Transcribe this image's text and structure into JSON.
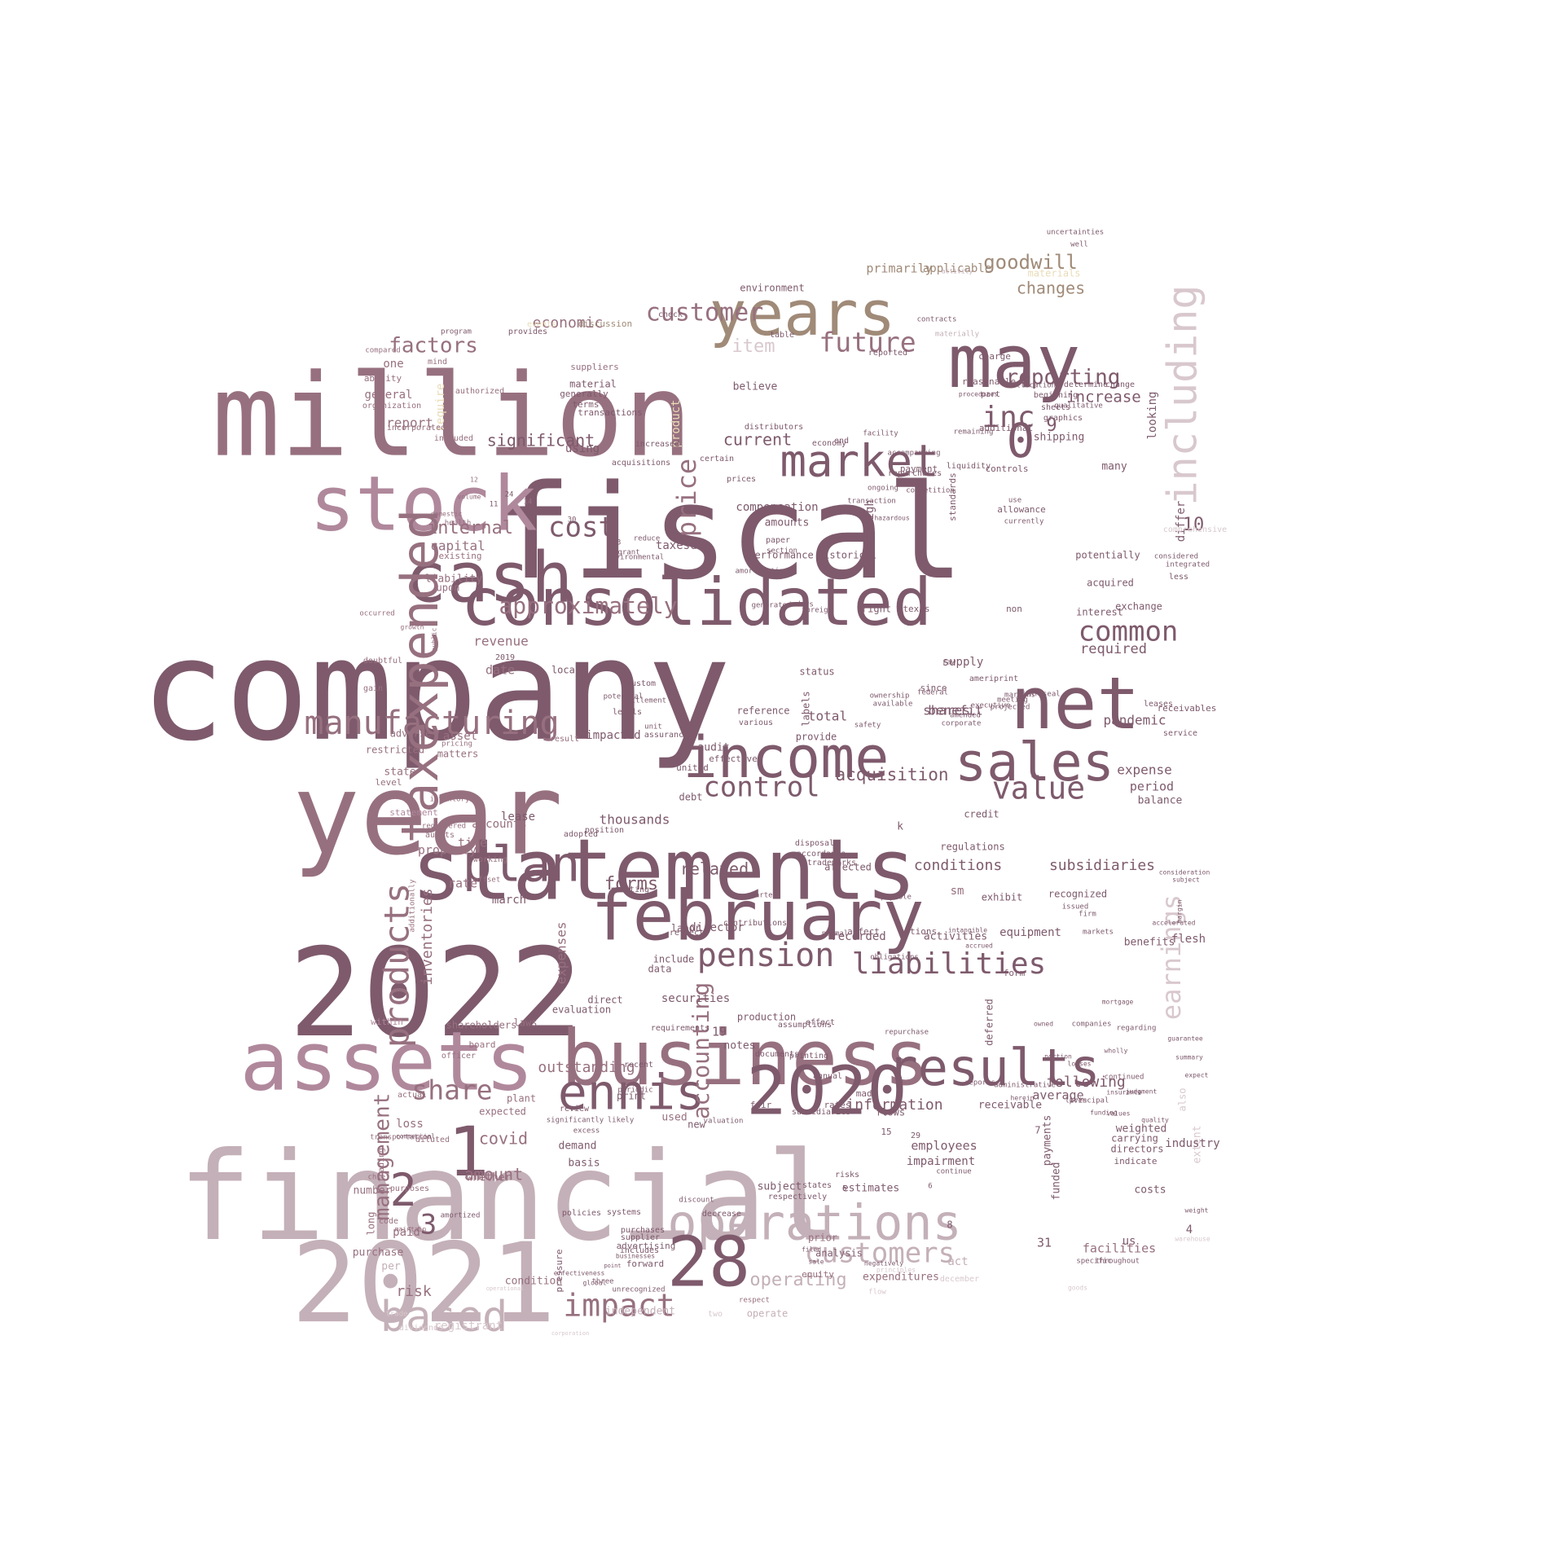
{
  "palette": {
    "dark": "#7e5a6c",
    "mid": "#97707f",
    "rose": "#b0889c",
    "light": "#c4b0b8",
    "pale": "#d8c8cd",
    "cream": "#e8dcb8",
    "tan": "#a08a78"
  },
  "words": [
    "company",
    "fiscal",
    "million",
    "financial",
    "year",
    "2022",
    "2021",
    "statements",
    "consolidated",
    "business",
    "february",
    "assets",
    "stock",
    "cash",
    "may",
    "years",
    "net",
    "income",
    "sales",
    "taxexpended",
    "market",
    "2020",
    "results",
    "operations",
    "plan",
    "ennis",
    "28",
    "products",
    "based",
    "including",
    "impact",
    "customers",
    "manufacturing",
    "pension",
    "liabilities",
    "management",
    "earnings",
    "value",
    "control",
    "cost",
    "price",
    "inc",
    "customer",
    "future",
    "approximately",
    "common",
    "share",
    "accounting",
    "goodwill",
    "reporting",
    "1",
    "2",
    "3",
    "0",
    "9",
    "10",
    "factors",
    "internal",
    "capital",
    "significant",
    "current",
    "increase",
    "changes",
    "item",
    "economic",
    "acquisition",
    "forms",
    "covid",
    "amount",
    "related",
    "information",
    "following",
    "average",
    "employees",
    "impairment",
    "outstanding",
    "operating",
    "risk",
    "conditions",
    "subsidiaries",
    "thousands",
    "shares",
    "benefit",
    "total",
    "pandemic",
    "expense",
    "period",
    "balance",
    "required",
    "exchange",
    "interest",
    "acquired",
    "due",
    "taxes",
    "liability",
    "upon",
    "revenue",
    "date",
    "report",
    "time",
    "property",
    "rate",
    "accounts",
    "lease",
    "inventories",
    "expenses",
    "securities",
    "notes",
    "equipment",
    "recorded",
    "activities",
    "receivable",
    "costs",
    "facilities",
    "act",
    "loss",
    "paid",
    "purchase",
    "per",
    "long",
    "number",
    "whether",
    "demand",
    "basis",
    "subject",
    "estimates",
    "analysis",
    "prior",
    "equity",
    "condition",
    "registrant",
    "independent",
    "print",
    "plant",
    "expected",
    "shareholders",
    "board",
    "officer",
    "laws",
    "direct",
    "labor",
    "include",
    "evaluation",
    "data",
    "19",
    "assumptions",
    "documents",
    "production",
    "printing",
    "annual",
    "made",
    "rates",
    "subsidiaries",
    "fair",
    "flows",
    "used",
    "new",
    "sm",
    "k",
    "recognized",
    "credit",
    "exhibit",
    "supply",
    "provide",
    "primarily",
    "applicable",
    "materials",
    "believe",
    "material",
    "generally",
    "terms",
    "suppliers",
    "product",
    "require",
    "using",
    "certain",
    "amounts",
    "compensation",
    "paper",
    "section",
    "differ",
    "high",
    "looking",
    "many",
    "allowance",
    "currently",
    "use",
    "additional",
    "shipping",
    "general",
    "ability",
    "one",
    "compared",
    "included",
    "existing",
    "2019",
    "local",
    "asset",
    "impacted",
    "result",
    "matters",
    "pricing",
    "adverse",
    "restricted",
    "state",
    "level",
    "statement",
    "within",
    "actual",
    "diluted",
    "trading",
    "trade",
    "dividends",
    "advertising",
    "forward",
    "three",
    "two",
    "operate",
    "respect",
    "expenditures",
    "december",
    "continue",
    "respectively",
    "states",
    "affect",
    "options",
    "extent",
    "also",
    "weighted",
    "carrying",
    "directors",
    "indicate",
    "funded",
    "payments",
    "7",
    "29",
    "15",
    "risks",
    "5",
    "6",
    "8",
    "31",
    "4",
    "us",
    "industry",
    "flesh",
    "march",
    "director",
    "regulations",
    "benefits",
    "deferred",
    "form",
    "effect",
    "repurchase",
    "audit",
    "effective",
    "united",
    "debt",
    "reference",
    "various",
    "labels",
    "status",
    "right",
    "texas",
    "non",
    "raw",
    "since",
    "ameriprint",
    "federal",
    "leases",
    "receivables",
    "service",
    "environment",
    "discussion",
    "events",
    "check",
    "program",
    "provides",
    "transactions",
    "distributors",
    "table",
    "reported",
    "charge",
    "allocation",
    "determine",
    "change",
    "qualitative",
    "sheets",
    "beginning",
    "graphics",
    "reasonable",
    "part",
    "procedures",
    "standards",
    "controls",
    "payment",
    "repurchases",
    "economy",
    "end",
    "increased",
    "acquisitions",
    "prices",
    "performance",
    "historical",
    "potentially",
    "less",
    "integrated",
    "considered",
    "comprehensive",
    "materially",
    "contracts",
    "uncertainties",
    "well",
    "requirements",
    "recent",
    "periodic",
    "review",
    "significantly",
    "likely",
    "excess",
    "valuation",
    "discount",
    "decrease",
    "systems",
    "purchases",
    "supplier",
    "includes",
    "policies",
    "pressure",
    "unrecognized",
    "amortized",
    "code",
    "chief",
    "transportation",
    "purposes",
    "maintain",
    "commercial",
    "reports",
    "administrative",
    "herein",
    "lives",
    "funding",
    "values",
    "quality",
    "principal",
    "continued",
    "regarding",
    "companies",
    "markets",
    "firm",
    "issued",
    "accrued",
    "intangible",
    "obligations",
    "payable",
    "normal",
    "contributions",
    "quarter",
    "accordance",
    "disposal",
    "trademarks",
    "affected",
    "reflect",
    "relating",
    "adopted",
    "position",
    "working",
    "offset",
    "additionally",
    "audits",
    "registered",
    "inventory",
    "levels",
    "potential",
    "custom",
    "settlement",
    "unit",
    "assurance",
    "ownership",
    "available",
    "safety",
    "corporate",
    "amended",
    "executive",
    "projected",
    "margins",
    "meeting",
    "infoseal",
    "days",
    "foreign",
    "generated",
    "amortization",
    "environmental",
    "reduce",
    "grant",
    "13",
    "30",
    "14",
    "24",
    "11",
    "12",
    "volume",
    "domestic",
    "health",
    "occurred",
    "growth",
    "public",
    "doubtful",
    "gain",
    "organization",
    "incorporated",
    "authorized",
    "mind",
    "liquidity",
    "remaining",
    "transaction",
    "hazardous",
    "ongoing",
    "competition",
    "facility",
    "accompanying",
    "activity",
    "goods",
    "operational",
    "corporation",
    "effectiveness",
    "point",
    "global",
    "flow",
    "principles",
    "sale",
    "filed",
    "negatively",
    "businesses",
    "warehouse",
    "throughout",
    "specific",
    "weight",
    "accelerated",
    "margin",
    "consideration",
    "subject",
    "insurance",
    "judgment",
    "expect",
    "summary",
    "guarantee",
    "mortgage",
    "wholly",
    "owned",
    "portion",
    "losses"
  ]
}
